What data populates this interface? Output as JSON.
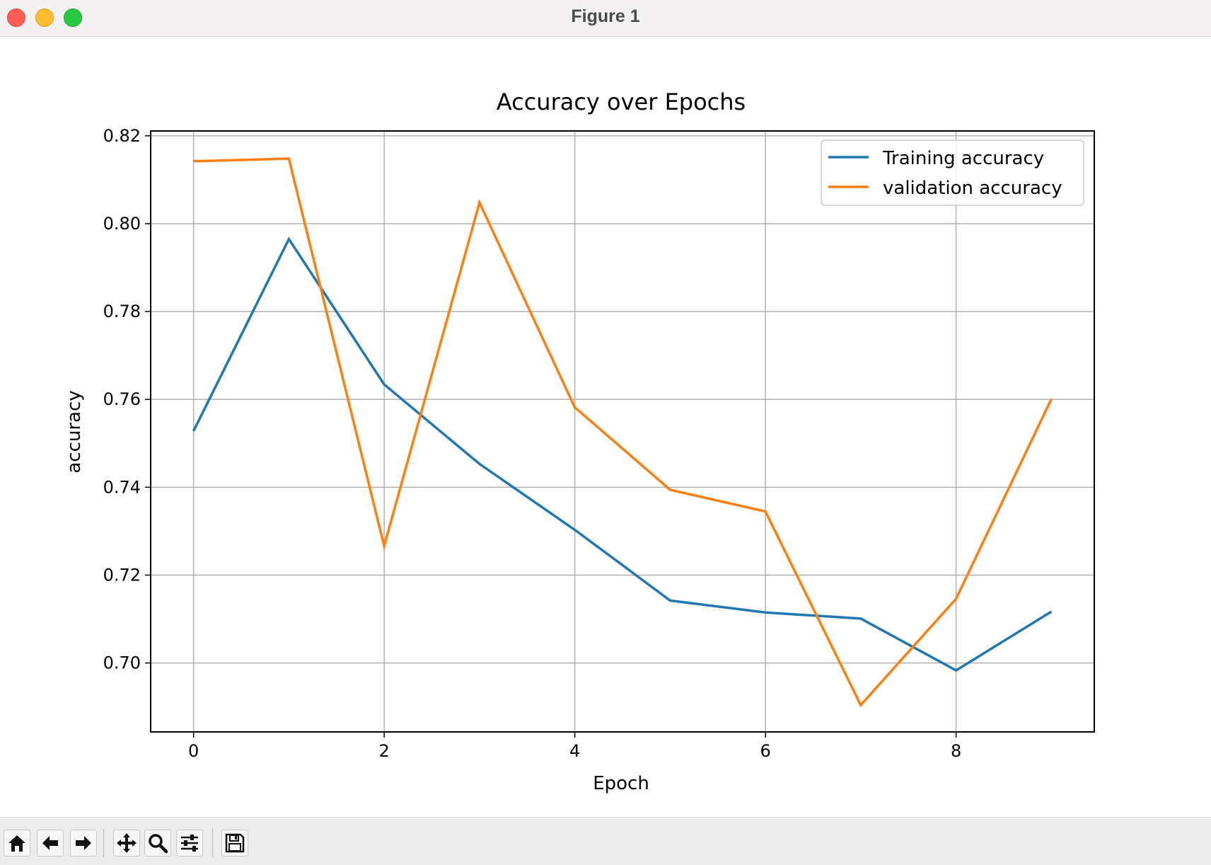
{
  "window": {
    "title": "Figure 1"
  },
  "toolbar": {
    "buttons": [
      {
        "icon": "home-icon"
      },
      {
        "icon": "back-arrow-icon"
      },
      {
        "icon": "forward-arrow-icon"
      },
      {
        "icon": "pan-icon"
      },
      {
        "icon": "zoom-icon"
      },
      {
        "icon": "configure-subplots-icon"
      },
      {
        "icon": "save-icon"
      }
    ]
  },
  "chart_data": {
    "type": "line",
    "title": "Accuracy over Epochs",
    "xlabel": "Epoch",
    "ylabel": "accuracy",
    "xlim": [
      -0.45,
      9.45
    ],
    "ylim": [
      0.6843,
      0.8211
    ],
    "xticks": [
      0,
      2,
      4,
      6,
      8
    ],
    "xtick_labels": [
      "0",
      "2",
      "4",
      "6",
      "8"
    ],
    "yticks": [
      0.7,
      0.72,
      0.74,
      0.76,
      0.78,
      0.8,
      0.82
    ],
    "ytick_labels": [
      "0.70",
      "0.72",
      "0.74",
      "0.76",
      "0.78",
      "0.80",
      "0.82"
    ],
    "grid": true,
    "legend_position": "upper right",
    "x": [
      0,
      1,
      2,
      3,
      4,
      5,
      6,
      7,
      8,
      9
    ],
    "series": [
      {
        "name": "Training accuracy",
        "color": "#1f77b4",
        "values": [
          0.7528,
          0.7965,
          0.7634,
          0.7453,
          0.7303,
          0.7142,
          0.7115,
          0.7101,
          0.6983,
          0.7117
        ]
      },
      {
        "name": "validation accuracy",
        "color": "#ff7f0e",
        "values": [
          0.8142,
          0.8148,
          0.7266,
          0.8048,
          0.7582,
          0.7394,
          0.7345,
          0.6904,
          0.7146,
          0.7601
        ]
      }
    ]
  }
}
